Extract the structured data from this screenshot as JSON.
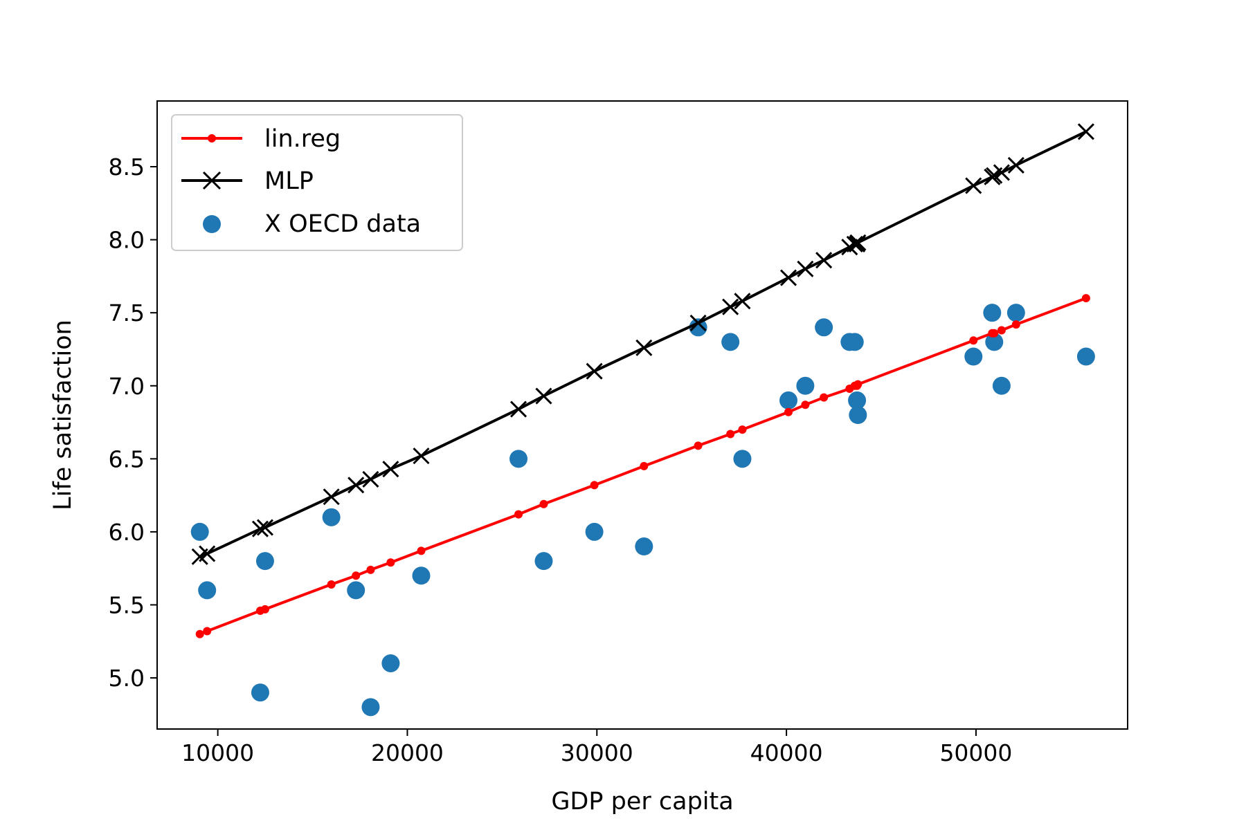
{
  "chart_data": {
    "type": "scatter",
    "title": "",
    "xlabel": "GDP per capita",
    "ylabel": "Life satisfaction",
    "xlim": [
      6800,
      58000
    ],
    "ylim": [
      4.65,
      8.95
    ],
    "x_ticks": [
      10000,
      20000,
      30000,
      40000,
      50000
    ],
    "y_ticks": [
      5.0,
      5.5,
      6.0,
      6.5,
      7.0,
      7.5,
      8.0,
      8.5
    ],
    "x_tick_labels": [
      "10000",
      "20000",
      "30000",
      "40000",
      "50000"
    ],
    "y_tick_labels": [
      "5.0",
      "5.5",
      "6.0",
      "6.5",
      "7.0",
      "7.5",
      "8.0",
      "8.5"
    ],
    "grid": false,
    "legend_position": "upper-left",
    "x": [
      9054,
      9437,
      12240,
      12495,
      15991,
      17288,
      18064,
      19121,
      20732,
      25864,
      27195,
      29866,
      32485,
      35343,
      37044,
      37675,
      40106,
      40996,
      41973,
      43331,
      43603,
      43724,
      43770,
      49866,
      50854,
      50962,
      51350,
      52114,
      55805
    ],
    "series": [
      {
        "name": "lin.reg",
        "kind": "line",
        "color": "#ff0000",
        "marker": "dot",
        "y": [
          5.3,
          5.32,
          5.46,
          5.47,
          5.64,
          5.7,
          5.74,
          5.79,
          5.87,
          6.12,
          6.19,
          6.32,
          6.45,
          6.59,
          6.67,
          6.7,
          6.82,
          6.87,
          6.92,
          6.98,
          7.0,
          7.0,
          7.01,
          7.31,
          7.36,
          7.36,
          7.38,
          7.42,
          7.6
        ]
      },
      {
        "name": "MLP",
        "kind": "line",
        "color": "#000000",
        "marker": "x",
        "y": [
          5.83,
          5.85,
          6.02,
          6.03,
          6.24,
          6.32,
          6.36,
          6.43,
          6.52,
          6.84,
          6.93,
          7.1,
          7.26,
          7.43,
          7.54,
          7.58,
          7.74,
          7.8,
          7.86,
          7.95,
          7.97,
          7.97,
          7.98,
          8.37,
          8.43,
          8.44,
          8.46,
          8.51,
          8.74
        ]
      },
      {
        "name": "X OECD data",
        "kind": "scatter",
        "color": "#1f77b4",
        "marker": "circle",
        "y": [
          6.0,
          5.6,
          4.9,
          5.8,
          6.1,
          5.6,
          4.8,
          5.1,
          5.7,
          6.5,
          5.8,
          6.0,
          5.9,
          7.4,
          7.3,
          6.5,
          6.9,
          7.0,
          7.4,
          7.3,
          7.3,
          6.9,
          6.8,
          7.2,
          7.5,
          7.3,
          7.0,
          7.5,
          7.2
        ]
      }
    ]
  }
}
